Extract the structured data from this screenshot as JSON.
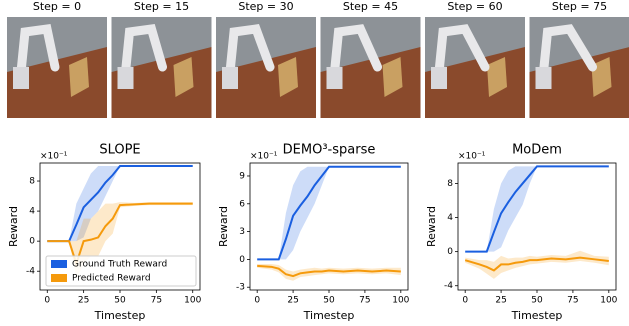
{
  "frames": [
    {
      "label": "Step = 0"
    },
    {
      "label": "Step = 15"
    },
    {
      "label": "Step = 30"
    },
    {
      "label": "Step = 45"
    },
    {
      "label": "Step = 60"
    },
    {
      "label": "Step = 75"
    }
  ],
  "chart_data": [
    {
      "type": "line",
      "title": "SLOPE",
      "multiplier": "×10⁻¹",
      "x_label": "Timestep",
      "y_label": "Reward",
      "x": [
        0,
        10,
        15,
        20,
        25,
        30,
        35,
        40,
        45,
        50,
        60,
        70,
        80,
        90,
        100
      ],
      "xlim": [
        -5,
        105
      ],
      "xticks": [
        0,
        25,
        50,
        75,
        100
      ],
      "ylim": [
        -6.5,
        10.4
      ],
      "yticks": [
        -4,
        0,
        4,
        8
      ],
      "legend": "lower right",
      "series": [
        {
          "name": "Ground Truth Reward",
          "color": "#1a5fe0",
          "values": [
            0,
            0,
            0,
            2.2,
            4.5,
            5.5,
            6.5,
            7.8,
            8.8,
            10,
            10,
            10,
            10,
            10,
            10
          ],
          "lower": [
            0,
            0,
            0,
            0,
            0.5,
            3,
            4,
            6,
            8,
            10,
            10,
            10,
            10,
            10,
            10
          ],
          "upper": [
            0,
            0,
            0,
            5,
            7,
            9,
            10,
            10,
            10,
            10,
            10,
            10,
            10,
            10,
            10
          ]
        },
        {
          "name": "Predicted Reward",
          "color": "#f59a0c",
          "values": [
            0,
            0,
            0,
            -3,
            0,
            0.2,
            0.5,
            2,
            3,
            4.8,
            4.9,
            5,
            5,
            5,
            5
          ],
          "lower": [
            0,
            0,
            0,
            -5,
            -3,
            -2,
            -2,
            0,
            1,
            4.5,
            4.7,
            4.8,
            4.8,
            4.8,
            4.8
          ],
          "upper": [
            0,
            0,
            0,
            0,
            3,
            3,
            4,
            5,
            5,
            5.2,
            5.1,
            5.2,
            5.2,
            5.2,
            5.2
          ]
        }
      ]
    },
    {
      "type": "line",
      "title": "DEMO³-sparse",
      "multiplier": "×10⁻¹",
      "x_label": "Timestep",
      "y_label": "Reward",
      "x": [
        0,
        10,
        15,
        20,
        25,
        30,
        35,
        40,
        45,
        50,
        60,
        70,
        80,
        90,
        100
      ],
      "xlim": [
        -5,
        105
      ],
      "xticks": [
        0,
        25,
        50,
        75,
        100
      ],
      "ylim": [
        -3.3,
        10.4
      ],
      "yticks": [
        -3,
        0,
        3,
        6,
        9
      ],
      "series": [
        {
          "color": "#1a5fe0",
          "values": [
            0,
            0,
            0,
            2.2,
            4.7,
            5.8,
            6.8,
            8,
            9,
            10,
            10,
            10,
            10,
            10,
            10
          ],
          "lower": [
            0,
            0,
            0,
            0,
            1,
            3,
            4.5,
            6,
            8,
            10,
            10,
            10,
            10,
            10,
            10
          ],
          "upper": [
            0,
            0,
            0,
            5,
            8,
            9.5,
            10,
            10,
            10,
            10,
            10,
            10,
            10,
            10,
            10
          ]
        },
        {
          "color": "#f59a0c",
          "values": [
            -0.7,
            -0.8,
            -1,
            -1.6,
            -1.8,
            -1.5,
            -1.4,
            -1.3,
            -1.3,
            -1.2,
            -1.3,
            -1.2,
            -1.3,
            -1.2,
            -1.3
          ],
          "lower": [
            -0.9,
            -1.1,
            -1.4,
            -2.1,
            -2.3,
            -1.9,
            -1.8,
            -1.7,
            -1.6,
            -1.5,
            -1.6,
            -1.5,
            -1.6,
            -1.5,
            -1.7
          ],
          "upper": [
            -0.5,
            -0.5,
            -0.6,
            -1.1,
            -1.3,
            -1.1,
            -1,
            -0.9,
            -1,
            -0.9,
            -1,
            -0.9,
            -1,
            -0.9,
            -0.9
          ]
        }
      ]
    },
    {
      "type": "line",
      "title": "MoDem",
      "multiplier": "×10⁻¹",
      "x_label": "Timestep",
      "y_label": "Reward",
      "x": [
        0,
        10,
        15,
        20,
        25,
        30,
        35,
        40,
        45,
        50,
        60,
        70,
        80,
        90,
        100
      ],
      "xlim": [
        -5,
        105
      ],
      "xticks": [
        0,
        25,
        50,
        75,
        100
      ],
      "ylim": [
        -4.5,
        10.4
      ],
      "yticks": [
        -4,
        0,
        4,
        8
      ],
      "series": [
        {
          "color": "#1a5fe0",
          "values": [
            0,
            0,
            0,
            2.3,
            4.5,
            5.8,
            7,
            8,
            9,
            10,
            10,
            10,
            10,
            10,
            10
          ],
          "lower": [
            0,
            0,
            0,
            0,
            0.5,
            2.5,
            4,
            5.5,
            8,
            10,
            10,
            10,
            10,
            10,
            10
          ],
          "upper": [
            0,
            0,
            0,
            5,
            8,
            9.5,
            10,
            10,
            10,
            10,
            10,
            10,
            10,
            10,
            10
          ]
        },
        {
          "color": "#f59a0c",
          "values": [
            -1,
            -1.5,
            -1.8,
            -2.2,
            -1.5,
            -1.5,
            -1.3,
            -1.2,
            -1,
            -1,
            -0.8,
            -0.9,
            -0.7,
            -0.9,
            -1.1
          ],
          "lower": [
            -1.3,
            -2,
            -2.6,
            -3.2,
            -2.5,
            -2.2,
            -1.9,
            -1.7,
            -1.5,
            -1.4,
            -1.2,
            -1.3,
            -1.1,
            -1.3,
            -1.6
          ],
          "upper": [
            -0.7,
            -1,
            -1,
            -1.2,
            -0.5,
            -0.8,
            -0.7,
            -0.7,
            -0.5,
            -0.6,
            -0.4,
            -0.5,
            0.1,
            -0.5,
            -0.6
          ]
        }
      ]
    }
  ]
}
